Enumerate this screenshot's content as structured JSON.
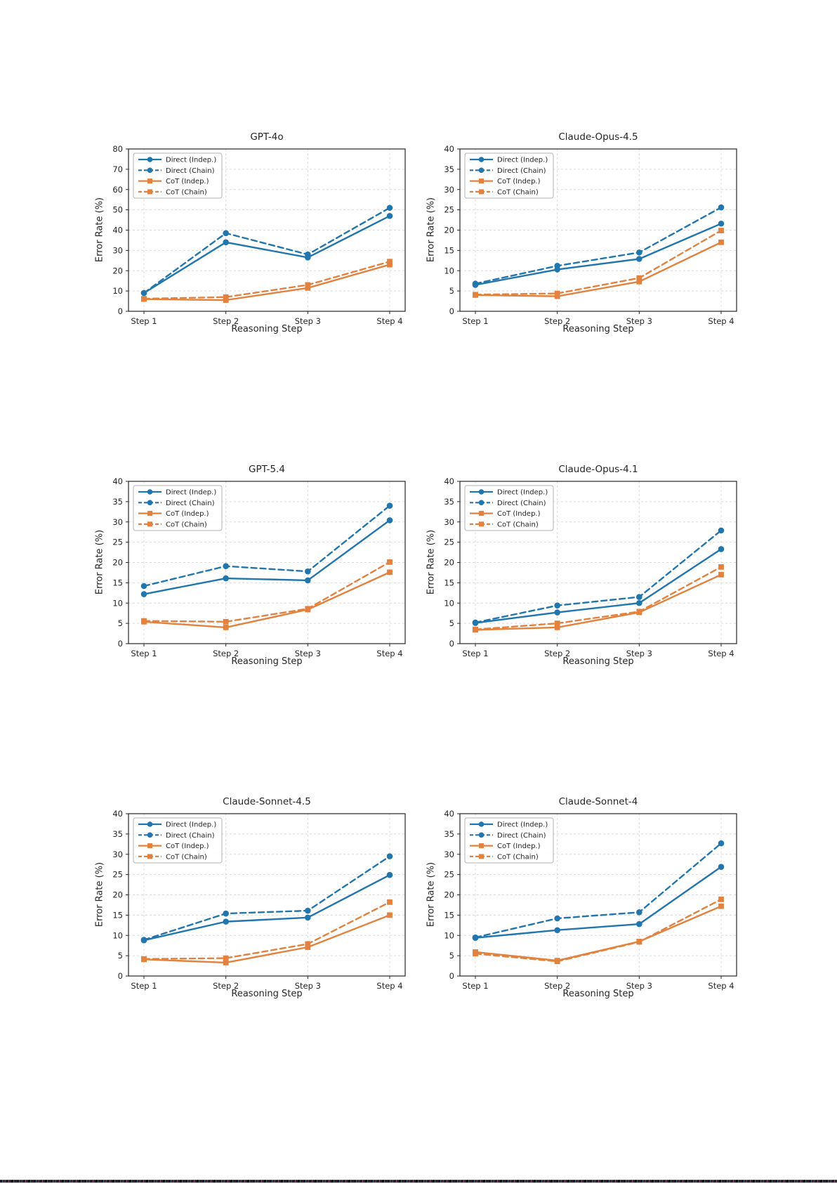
{
  "page": {
    "background": "#ffffff"
  },
  "colors": {
    "direct_blue": "#2176ae",
    "cot_orange": "#e2823e",
    "grid": "#d9d9d9",
    "spine": "#262626",
    "text": "#262626",
    "legend_border": "#b3b3b3"
  },
  "legend": {
    "position": "upper left",
    "entries": [
      "Direct (Indep.)",
      "Direct (Chain)",
      "CoT (Indep.)",
      "CoT (Chain)"
    ]
  },
  "chart_data": [
    {
      "type": "line",
      "title": "GPT-4o",
      "xlabel": "Reasoning Step",
      "ylabel": "Error Rate (%)",
      "categories": [
        "Step 1",
        "Step 2",
        "Step 3",
        "Step 4"
      ],
      "ylim": [
        0,
        80
      ],
      "ytick_step": 10,
      "grid": true,
      "legend_position": "upper left",
      "series": [
        {
          "name": "Direct (Indep.)",
          "color": "#2176ae",
          "style": "solid",
          "marker": "circle",
          "values": [
            9.0,
            34.0,
            26.5,
            47.0
          ]
        },
        {
          "name": "Direct (Chain)",
          "color": "#2176ae",
          "style": "dashed",
          "marker": "circle",
          "values": [
            9.0,
            38.5,
            28.0,
            51.0
          ]
        },
        {
          "name": "CoT (Indep.)",
          "color": "#e2823e",
          "style": "solid",
          "marker": "square",
          "values": [
            6.0,
            5.5,
            11.5,
            23.0
          ]
        },
        {
          "name": "CoT (Chain)",
          "color": "#e2823e",
          "style": "dashed",
          "marker": "square",
          "values": [
            6.2,
            7.0,
            13.0,
            24.5
          ]
        }
      ]
    },
    {
      "type": "line",
      "title": "Claude-Opus-4.5",
      "xlabel": "Reasoning Step",
      "ylabel": "Error Rate (%)",
      "categories": [
        "Step 1",
        "Step 2",
        "Step 3",
        "Step 4"
      ],
      "ylim": [
        0,
        40
      ],
      "ytick_step": 5,
      "grid": true,
      "legend_position": "upper left",
      "series": [
        {
          "name": "Direct (Indep.)",
          "color": "#2176ae",
          "style": "solid",
          "marker": "circle",
          "values": [
            6.5,
            10.3,
            12.9,
            21.6
          ]
        },
        {
          "name": "Direct (Chain)",
          "color": "#2176ae",
          "style": "dashed",
          "marker": "circle",
          "values": [
            6.8,
            11.2,
            14.5,
            25.6
          ]
        },
        {
          "name": "CoT (Indep.)",
          "color": "#e2823e",
          "style": "solid",
          "marker": "square",
          "values": [
            4.0,
            3.7,
            7.3,
            17.0
          ]
        },
        {
          "name": "CoT (Chain)",
          "color": "#e2823e",
          "style": "dashed",
          "marker": "square",
          "values": [
            4.1,
            4.4,
            8.2,
            19.9
          ]
        }
      ]
    },
    {
      "type": "line",
      "title": "GPT-5.4",
      "xlabel": "Reasoning Step",
      "ylabel": "Error Rate (%)",
      "categories": [
        "Step 1",
        "Step 2",
        "Step 3",
        "Step 4"
      ],
      "ylim": [
        0,
        40
      ],
      "ytick_step": 5,
      "grid": true,
      "legend_position": "upper left",
      "series": [
        {
          "name": "Direct (Indep.)",
          "color": "#2176ae",
          "style": "solid",
          "marker": "circle",
          "values": [
            12.2,
            16.1,
            15.6,
            30.4
          ]
        },
        {
          "name": "Direct (Chain)",
          "color": "#2176ae",
          "style": "dashed",
          "marker": "circle",
          "values": [
            14.2,
            19.1,
            17.8,
            34.0
          ]
        },
        {
          "name": "CoT (Indep.)",
          "color": "#e2823e",
          "style": "solid",
          "marker": "square",
          "values": [
            5.4,
            4.0,
            8.4,
            17.6
          ]
        },
        {
          "name": "CoT (Chain)",
          "color": "#e2823e",
          "style": "dashed",
          "marker": "square",
          "values": [
            5.6,
            5.4,
            8.6,
            20.1
          ]
        }
      ]
    },
    {
      "type": "line",
      "title": "Claude-Opus-4.1",
      "xlabel": "Reasoning Step",
      "ylabel": "Error Rate (%)",
      "categories": [
        "Step 1",
        "Step 2",
        "Step 3",
        "Step 4"
      ],
      "ylim": [
        0,
        40
      ],
      "ytick_step": 5,
      "grid": true,
      "legend_position": "upper left",
      "series": [
        {
          "name": "Direct (Indep.)",
          "color": "#2176ae",
          "style": "solid",
          "marker": "circle",
          "values": [
            5.1,
            7.7,
            10.0,
            23.3
          ]
        },
        {
          "name": "Direct (Chain)",
          "color": "#2176ae",
          "style": "dashed",
          "marker": "circle",
          "values": [
            5.2,
            9.4,
            11.5,
            27.9
          ]
        },
        {
          "name": "CoT (Indep.)",
          "color": "#e2823e",
          "style": "solid",
          "marker": "square",
          "values": [
            3.4,
            4.0,
            7.7,
            17.0
          ]
        },
        {
          "name": "CoT (Chain)",
          "color": "#e2823e",
          "style": "dashed",
          "marker": "square",
          "values": [
            3.5,
            5.0,
            7.9,
            18.9
          ]
        }
      ]
    },
    {
      "type": "line",
      "title": "Claude-Sonnet-4.5",
      "xlabel": "Reasoning Step",
      "ylabel": "Error Rate (%)",
      "categories": [
        "Step 1",
        "Step 2",
        "Step 3",
        "Step 4"
      ],
      "ylim": [
        0,
        40
      ],
      "ytick_step": 5,
      "grid": true,
      "legend_position": "upper left",
      "series": [
        {
          "name": "Direct (Indep.)",
          "color": "#2176ae",
          "style": "solid",
          "marker": "circle",
          "values": [
            8.8,
            13.4,
            14.4,
            24.9
          ]
        },
        {
          "name": "Direct (Chain)",
          "color": "#2176ae",
          "style": "dashed",
          "marker": "circle",
          "values": [
            8.9,
            15.4,
            16.1,
            29.5
          ]
        },
        {
          "name": "CoT (Indep.)",
          "color": "#e2823e",
          "style": "solid",
          "marker": "square",
          "values": [
            4.1,
            3.3,
            7.1,
            15.0
          ]
        },
        {
          "name": "CoT (Chain)",
          "color": "#e2823e",
          "style": "dashed",
          "marker": "square",
          "values": [
            4.2,
            4.4,
            7.9,
            18.2
          ]
        }
      ]
    },
    {
      "type": "line",
      "title": "Claude-Sonnet-4",
      "xlabel": "Reasoning Step",
      "ylabel": "Error Rate (%)",
      "categories": [
        "Step 1",
        "Step 2",
        "Step 3",
        "Step 4"
      ],
      "ylim": [
        0,
        40
      ],
      "ytick_step": 5,
      "grid": true,
      "legend_position": "upper left",
      "series": [
        {
          "name": "Direct (Indep.)",
          "color": "#2176ae",
          "style": "solid",
          "marker": "circle",
          "values": [
            9.4,
            11.3,
            12.8,
            26.9
          ]
        },
        {
          "name": "Direct (Chain)",
          "color": "#2176ae",
          "style": "dashed",
          "marker": "circle",
          "values": [
            9.5,
            14.2,
            15.7,
            32.7
          ]
        },
        {
          "name": "CoT (Indep.)",
          "color": "#e2823e",
          "style": "solid",
          "marker": "square",
          "values": [
            5.9,
            3.8,
            8.5,
            17.2
          ]
        },
        {
          "name": "CoT (Chain)",
          "color": "#e2823e",
          "style": "dashed",
          "marker": "square",
          "values": [
            5.5,
            3.6,
            8.4,
            18.9
          ]
        }
      ]
    }
  ]
}
